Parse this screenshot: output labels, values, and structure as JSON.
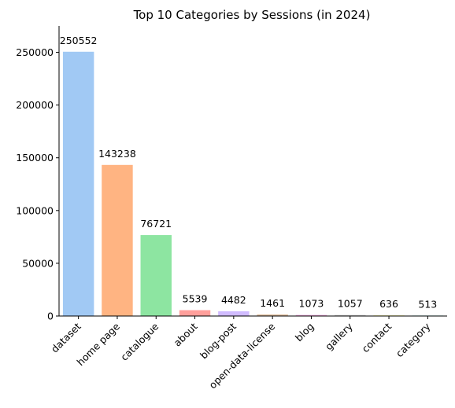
{
  "chart_data": {
    "type": "bar",
    "title": "Top 10 Categories by Sessions (in 2024)",
    "xlabel": "",
    "ylabel": "",
    "categories": [
      "dataset",
      "home page",
      "catalogue",
      "about",
      "blog-post",
      "open-data-license",
      "blog",
      "gallery",
      "contact",
      "category"
    ],
    "values": [
      250552,
      143238,
      76721,
      5539,
      4482,
      1461,
      1073,
      1057,
      636,
      513
    ],
    "colors": [
      "#a1c9f4",
      "#ffb482",
      "#8de5a1",
      "#ff9f9b",
      "#d0bbff",
      "#debb9b",
      "#fab0e4",
      "#cfcfcf",
      "#fffea3",
      "#b9f2f0"
    ],
    "ylim": [
      0,
      275000
    ],
    "yticks": [
      0,
      50000,
      100000,
      150000,
      200000,
      250000
    ],
    "ytick_labels": [
      "0",
      "50000",
      "100000",
      "150000",
      "200000",
      "250000"
    ],
    "grid": false,
    "legend": "none"
  }
}
